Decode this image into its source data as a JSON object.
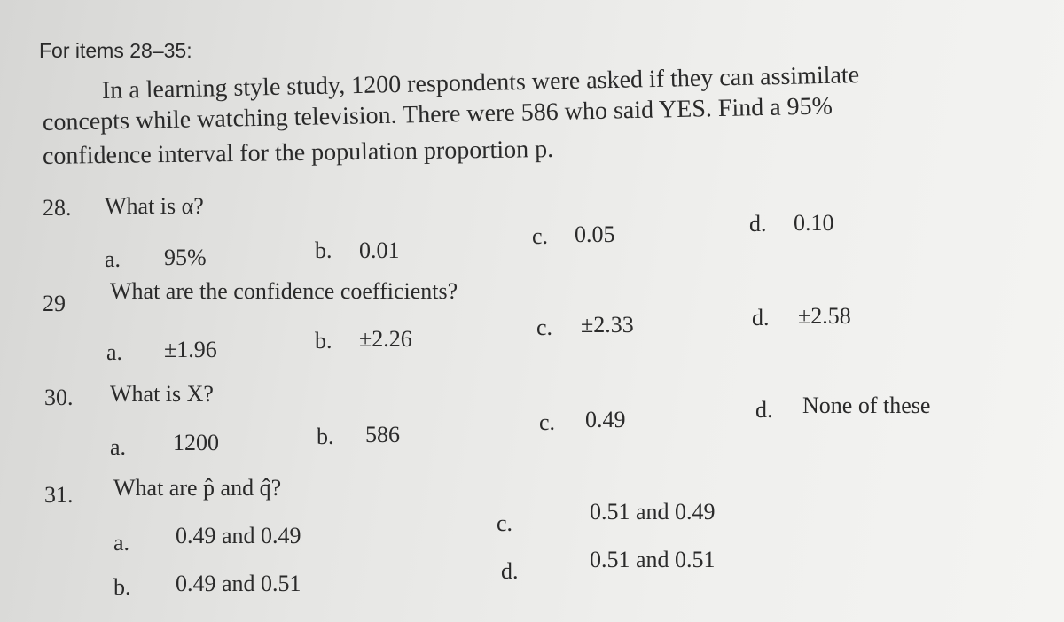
{
  "header": "For items 28–35:",
  "problem": {
    "lines": [
      "In a learning style study, 1200 respondents were asked if they can assimilate",
      "concepts while watching television. There were 586 who said YES. Find a 95%",
      "confidence interval for the population proportion p."
    ]
  },
  "questions": [
    {
      "number": "28.",
      "text": "What is α?",
      "options": [
        {
          "letter": "a.",
          "text": "95%"
        },
        {
          "letter": "b.",
          "text": "0.01"
        },
        {
          "letter": "c.",
          "text": "0.05"
        },
        {
          "letter": "d.",
          "text": "0.10"
        }
      ]
    },
    {
      "number": "29",
      "text": "What are the confidence coefficients?",
      "options": [
        {
          "letter": "a.",
          "text": "±1.96"
        },
        {
          "letter": "b.",
          "text": "±2.26"
        },
        {
          "letter": "c.",
          "text": "±2.33"
        },
        {
          "letter": "d.",
          "text": "±2.58"
        }
      ]
    },
    {
      "number": "30.",
      "text": "What is X?",
      "options": [
        {
          "letter": "a.",
          "text": "1200"
        },
        {
          "letter": "b.",
          "text": "586"
        },
        {
          "letter": "c.",
          "text": "0.49"
        },
        {
          "letter": "d.",
          "text": "None of these"
        }
      ]
    },
    {
      "number": "31.",
      "text": "What are p̂ and q̂?",
      "options": [
        {
          "letter": "a.",
          "text": "0.49 and 0.49"
        },
        {
          "letter": "b.",
          "text": "0.49 and 0.51"
        },
        {
          "letter": "c.",
          "text": "0.51 and 0.49"
        },
        {
          "letter": "d.",
          "text": "0.51 and 0.51"
        }
      ]
    }
  ]
}
